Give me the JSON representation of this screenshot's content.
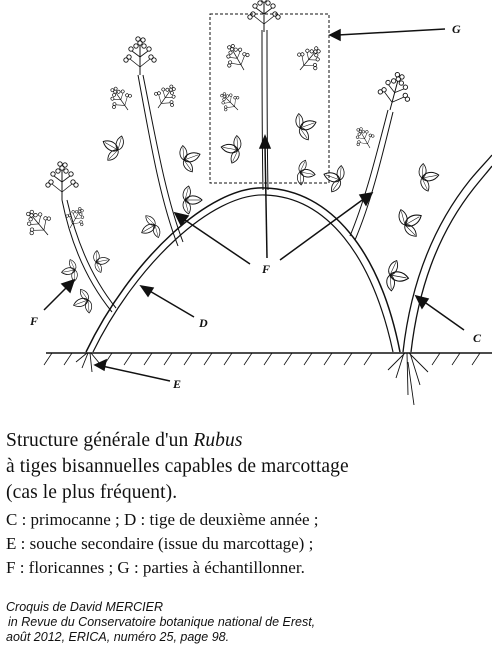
{
  "labels": {
    "g": "G",
    "f_center": "F",
    "f_left": "F",
    "d": "D",
    "c": "C",
    "e": "E"
  },
  "caption": {
    "line1_prefix": "Structure générale d'un ",
    "line1_italic": "Rubus",
    "line2": "à tiges bisannuelles capables de marcottage",
    "line3": "(cas le plus fréquent)."
  },
  "legend": {
    "line1": "C : primocanne ; D : tige de deuxième année ;",
    "line2": "E : souche secondaire (issue du marcottage) ;",
    "line3": "F :  floricannes ; G : parties à échantillonner."
  },
  "credit": {
    "line1": "Croquis de David MERCIER",
    "line2": "in Revue du Conservatoire botanique national de Erest,",
    "line3": "août 2012, ERICA, numéro 25, page 98."
  }
}
